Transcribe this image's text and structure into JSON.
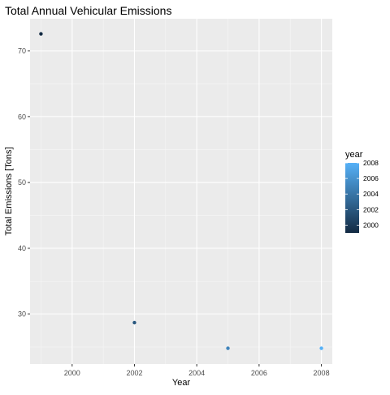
{
  "chart_data": {
    "type": "scatter",
    "title": "Total Annual Vehicular Emissions",
    "xlabel": "Year",
    "ylabel": "Total Emissions [Tons]",
    "xlim": [
      1998.65,
      2008.35
    ],
    "ylim": [
      22.4,
      74.9
    ],
    "x_ticks": [
      2000,
      2002,
      2004,
      2006,
      2008
    ],
    "y_ticks": [
      30,
      40,
      50,
      60,
      70
    ],
    "grid": true,
    "legend": {
      "title": "year",
      "position": "right",
      "colorbar": true,
      "labels": [
        "2008",
        "2006",
        "2004",
        "2002",
        "2000"
      ],
      "range": [
        1999,
        2008
      ],
      "low_color": "#132B43",
      "high_color": "#56B1F7"
    },
    "points": [
      {
        "x": 1999,
        "y": 72.6
      },
      {
        "x": 2002,
        "y": 28.7
      },
      {
        "x": 2005,
        "y": 24.8
      },
      {
        "x": 2008,
        "y": 24.8
      }
    ]
  }
}
